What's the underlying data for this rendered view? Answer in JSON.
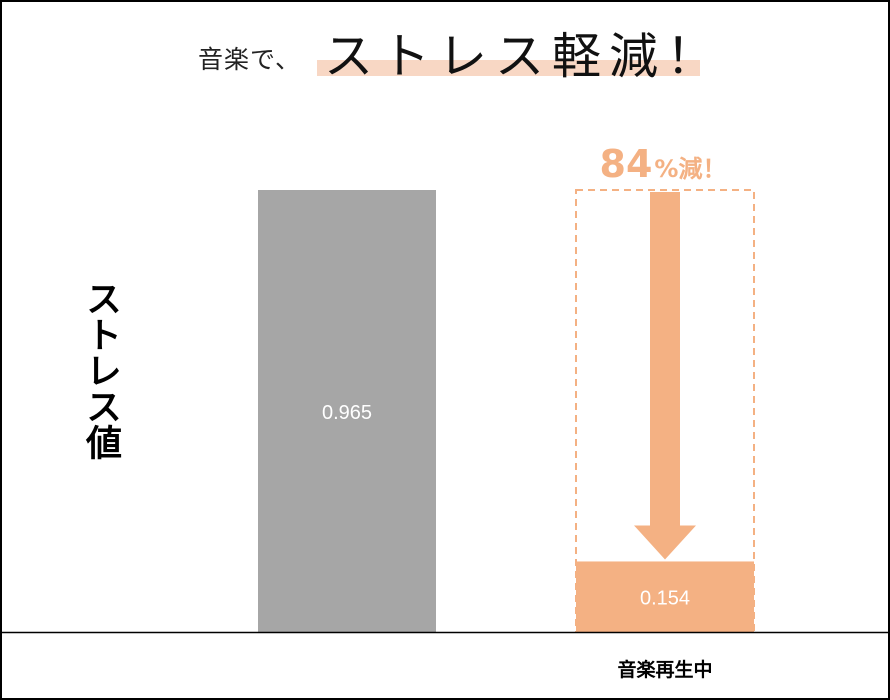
{
  "title": {
    "lead": "音楽で、",
    "main": "ストレス軽減！"
  },
  "colors": {
    "baseline": "#a6a6a6",
    "music": "#f4b183",
    "text_light": "#ffffff",
    "axis": "#000000"
  },
  "chart_data": {
    "type": "bar",
    "title": "音楽で、ストレス軽減！",
    "ylabel": "ストレス値",
    "xlabel": "",
    "categories": [
      "",
      "音楽再生中"
    ],
    "values": [
      0.965,
      0.154
    ],
    "value_labels": [
      "0.965",
      "0.154"
    ],
    "ylim": [
      0,
      1
    ],
    "grid": false,
    "legend": "none",
    "annotation": {
      "number": "84",
      "suffix": "%減！",
      "from": 0,
      "to": 1
    }
  }
}
